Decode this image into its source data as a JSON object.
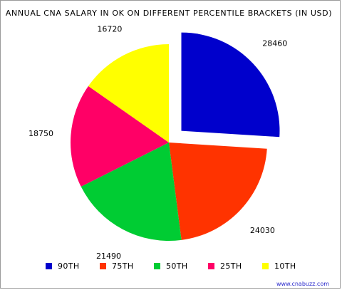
{
  "chart_data": {
    "type": "pie",
    "title": "ANNUAL CNA SALARY IN OK ON DIFFERENT PERCENTILE BRACKETS (IN USD)",
    "slices": [
      {
        "label": "90TH",
        "value": 28460,
        "color": "#0000cc",
        "exploded": true
      },
      {
        "label": "75TH",
        "value": 24030,
        "color": "#ff3300",
        "exploded": false
      },
      {
        "label": "50TH",
        "value": 21490,
        "color": "#00cc33",
        "exploded": false
      },
      {
        "label": "25TH",
        "value": 18750,
        "color": "#ff0066",
        "exploded": false
      },
      {
        "label": "10TH",
        "value": 16720,
        "color": "#ffff00",
        "exploded": false
      }
    ],
    "legend_position": "bottom",
    "start_angle_deg": 0,
    "direction": "clockwise"
  },
  "credit": "www.cnabuzz.com"
}
